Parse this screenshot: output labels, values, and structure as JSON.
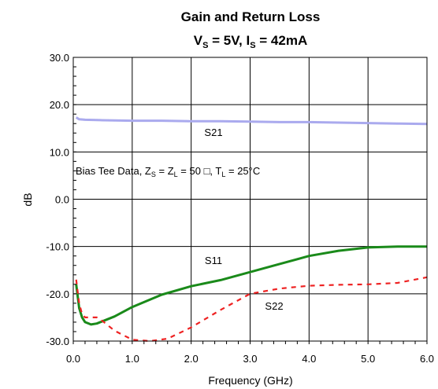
{
  "chart_data": {
    "type": "line",
    "title": "Gain and Return Loss",
    "subtitle": {
      "v_main": "V",
      "v_sub": "S",
      "v_rest": " = 5V, I",
      "i_sub": "S",
      "i_rest": " = 42mA"
    },
    "xlabel": "Frequency (GHz)",
    "ylabel": "dB",
    "xlim": [
      0,
      6
    ],
    "ylim": [
      -30,
      30
    ],
    "x_ticks": [
      "0.0",
      "1.0",
      "2.0",
      "3.0",
      "4.0",
      "5.0",
      "6.0"
    ],
    "y_ticks": [
      "30.0",
      "20.0",
      "10.0",
      "0.0",
      "-10.0",
      "-20.0",
      "-30.0"
    ],
    "grid": true,
    "annotation": {
      "prefix": "Bias Tee Data, Z",
      "sub1": "S",
      "mid1": " = Z",
      "sub2": "L",
      "mid2": " = 50 ",
      "ohm": "□",
      "mid3": ", T",
      "sub3": "L",
      "suffix": " = 25°C"
    },
    "series": [
      {
        "name": "S21",
        "color": "#aaaaee",
        "style": "solid",
        "x": [
          0.05,
          0.1,
          0.2,
          0.5,
          1.0,
          1.5,
          2.0,
          2.5,
          3.0,
          3.5,
          4.0,
          4.5,
          5.0,
          5.5,
          6.0
        ],
        "y": [
          17.3,
          16.9,
          16.8,
          16.7,
          16.6,
          16.6,
          16.5,
          16.5,
          16.4,
          16.3,
          16.3,
          16.2,
          16.1,
          16.0,
          15.9
        ]
      },
      {
        "name": "S11",
        "color": "#1a8a1a",
        "style": "solid",
        "x": [
          0.05,
          0.1,
          0.15,
          0.2,
          0.3,
          0.4,
          0.5,
          0.7,
          1.0,
          1.5,
          2.0,
          2.5,
          3.0,
          3.5,
          4.0,
          4.5,
          5.0,
          5.5,
          6.0
        ],
        "y": [
          -18.0,
          -23.0,
          -25.0,
          -26.0,
          -26.5,
          -26.3,
          -25.8,
          -24.8,
          -22.8,
          -20.2,
          -18.4,
          -17.1,
          -15.4,
          -13.7,
          -12.0,
          -10.9,
          -10.2,
          -10.0,
          -10.0
        ]
      },
      {
        "name": "S22",
        "color": "#ee2222",
        "style": "dashed",
        "x": [
          0.05,
          0.1,
          0.15,
          0.2,
          0.3,
          0.4,
          0.5,
          0.7,
          1.0,
          1.3,
          1.6,
          2.0,
          2.5,
          3.0,
          3.5,
          4.0,
          4.5,
          5.0,
          5.5,
          6.0
        ],
        "y": [
          -17.0,
          -22.0,
          -24.3,
          -25.0,
          -25.0,
          -25.0,
          -25.8,
          -27.8,
          -29.7,
          -30.5,
          -29.5,
          -27.1,
          -23.4,
          -20.0,
          -18.9,
          -18.3,
          -18.1,
          -18.0,
          -17.7,
          -16.5
        ]
      }
    ]
  }
}
